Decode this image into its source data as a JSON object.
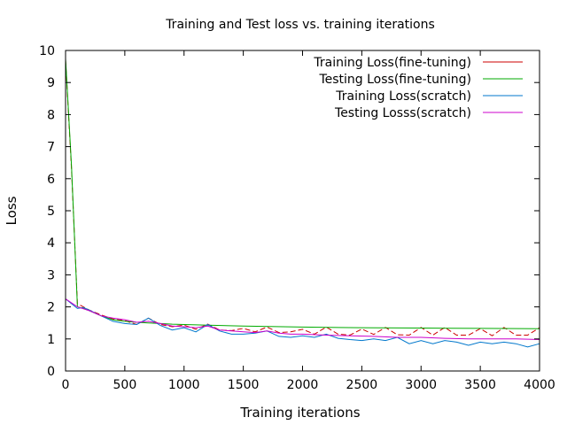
{
  "chart_data": {
    "type": "line",
    "title": "Training and Test loss vs. training iterations",
    "xlabel": "Training iterations",
    "ylabel": "Loss",
    "xlim": [
      0,
      4000
    ],
    "ylim": [
      0,
      10
    ],
    "x_ticks": [
      0,
      500,
      1000,
      1500,
      2000,
      2500,
      3000,
      3500,
      4000
    ],
    "y_ticks": [
      0,
      1,
      2,
      3,
      4,
      5,
      6,
      7,
      8,
      9,
      10
    ],
    "grid": false,
    "legend": "top-right",
    "series": [
      {
        "name": "Training Loss(fine-tuning)",
        "color": "#cc0000",
        "dash": "6,3",
        "x": [
          0,
          50,
          100,
          150,
          200,
          300,
          400,
          500,
          600,
          700,
          800,
          900,
          1000,
          1100,
          1200,
          1300,
          1400,
          1500,
          1600,
          1700,
          1800,
          1900,
          2000,
          2100,
          2200,
          2300,
          2400,
          2500,
          2600,
          2700,
          2800,
          2900,
          3000,
          3100,
          3200,
          3300,
          3400,
          3500,
          3600,
          3700,
          3800,
          3900,
          4000
        ],
        "y": [
          9.7,
          6.3,
          2.1,
          2.0,
          1.9,
          1.75,
          1.62,
          1.57,
          1.45,
          1.65,
          1.45,
          1.38,
          1.43,
          1.3,
          1.46,
          1.28,
          1.26,
          1.33,
          1.22,
          1.37,
          1.2,
          1.22,
          1.3,
          1.15,
          1.37,
          1.15,
          1.12,
          1.31,
          1.14,
          1.36,
          1.13,
          1.12,
          1.36,
          1.12,
          1.36,
          1.12,
          1.12,
          1.32,
          1.1,
          1.36,
          1.12,
          1.12,
          1.35
        ]
      },
      {
        "name": "Testing Loss(fine-tuning)",
        "color": "#00aa00",
        "dash": "",
        "x": [
          0,
          50,
          100,
          150,
          200,
          300,
          400,
          500,
          600,
          700,
          800,
          900,
          1000,
          1200,
          1500,
          2000,
          2500,
          3000,
          3500,
          4000
        ],
        "y": [
          9.75,
          6.4,
          2.0,
          1.95,
          1.88,
          1.72,
          1.6,
          1.55,
          1.52,
          1.5,
          1.48,
          1.46,
          1.45,
          1.43,
          1.4,
          1.37,
          1.35,
          1.34,
          1.33,
          1.32
        ]
      },
      {
        "name": "Training Loss(scratch)",
        "color": "#0077cc",
        "dash": "",
        "x": [
          0,
          100,
          150,
          200,
          300,
          400,
          500,
          600,
          700,
          800,
          900,
          1000,
          1100,
          1200,
          1300,
          1400,
          1500,
          1600,
          1700,
          1800,
          1900,
          2000,
          2100,
          2200,
          2300,
          2400,
          2500,
          2600,
          2700,
          2800,
          2900,
          3000,
          3100,
          3200,
          3300,
          3400,
          3500,
          3600,
          3700,
          3800,
          3900,
          4000
        ],
        "y": [
          2.25,
          1.95,
          1.98,
          1.9,
          1.72,
          1.55,
          1.48,
          1.45,
          1.65,
          1.42,
          1.28,
          1.35,
          1.22,
          1.45,
          1.25,
          1.15,
          1.15,
          1.18,
          1.25,
          1.08,
          1.05,
          1.1,
          1.05,
          1.15,
          1.02,
          0.98,
          0.95,
          1.0,
          0.95,
          1.05,
          0.85,
          0.95,
          0.85,
          0.95,
          0.9,
          0.8,
          0.9,
          0.85,
          0.9,
          0.85,
          0.75,
          0.85
        ]
      },
      {
        "name": "Testing Losss(scratch)",
        "color": "#cc00cc",
        "dash": "",
        "x": [
          0,
          100,
          200,
          300,
          400,
          500,
          600,
          700,
          800,
          900,
          1000,
          1100,
          1200,
          1300,
          1400,
          1500,
          1600,
          1700,
          1800,
          1900,
          2000,
          2200,
          2400,
          2600,
          2800,
          3000,
          3200,
          3400,
          3600,
          3800,
          4000
        ],
        "y": [
          2.25,
          2.0,
          1.88,
          1.72,
          1.65,
          1.6,
          1.52,
          1.55,
          1.48,
          1.4,
          1.38,
          1.35,
          1.4,
          1.28,
          1.25,
          1.22,
          1.2,
          1.25,
          1.18,
          1.15,
          1.15,
          1.12,
          1.1,
          1.08,
          1.05,
          1.05,
          1.02,
          1.0,
          1.0,
          1.0,
          0.98
        ]
      }
    ]
  }
}
